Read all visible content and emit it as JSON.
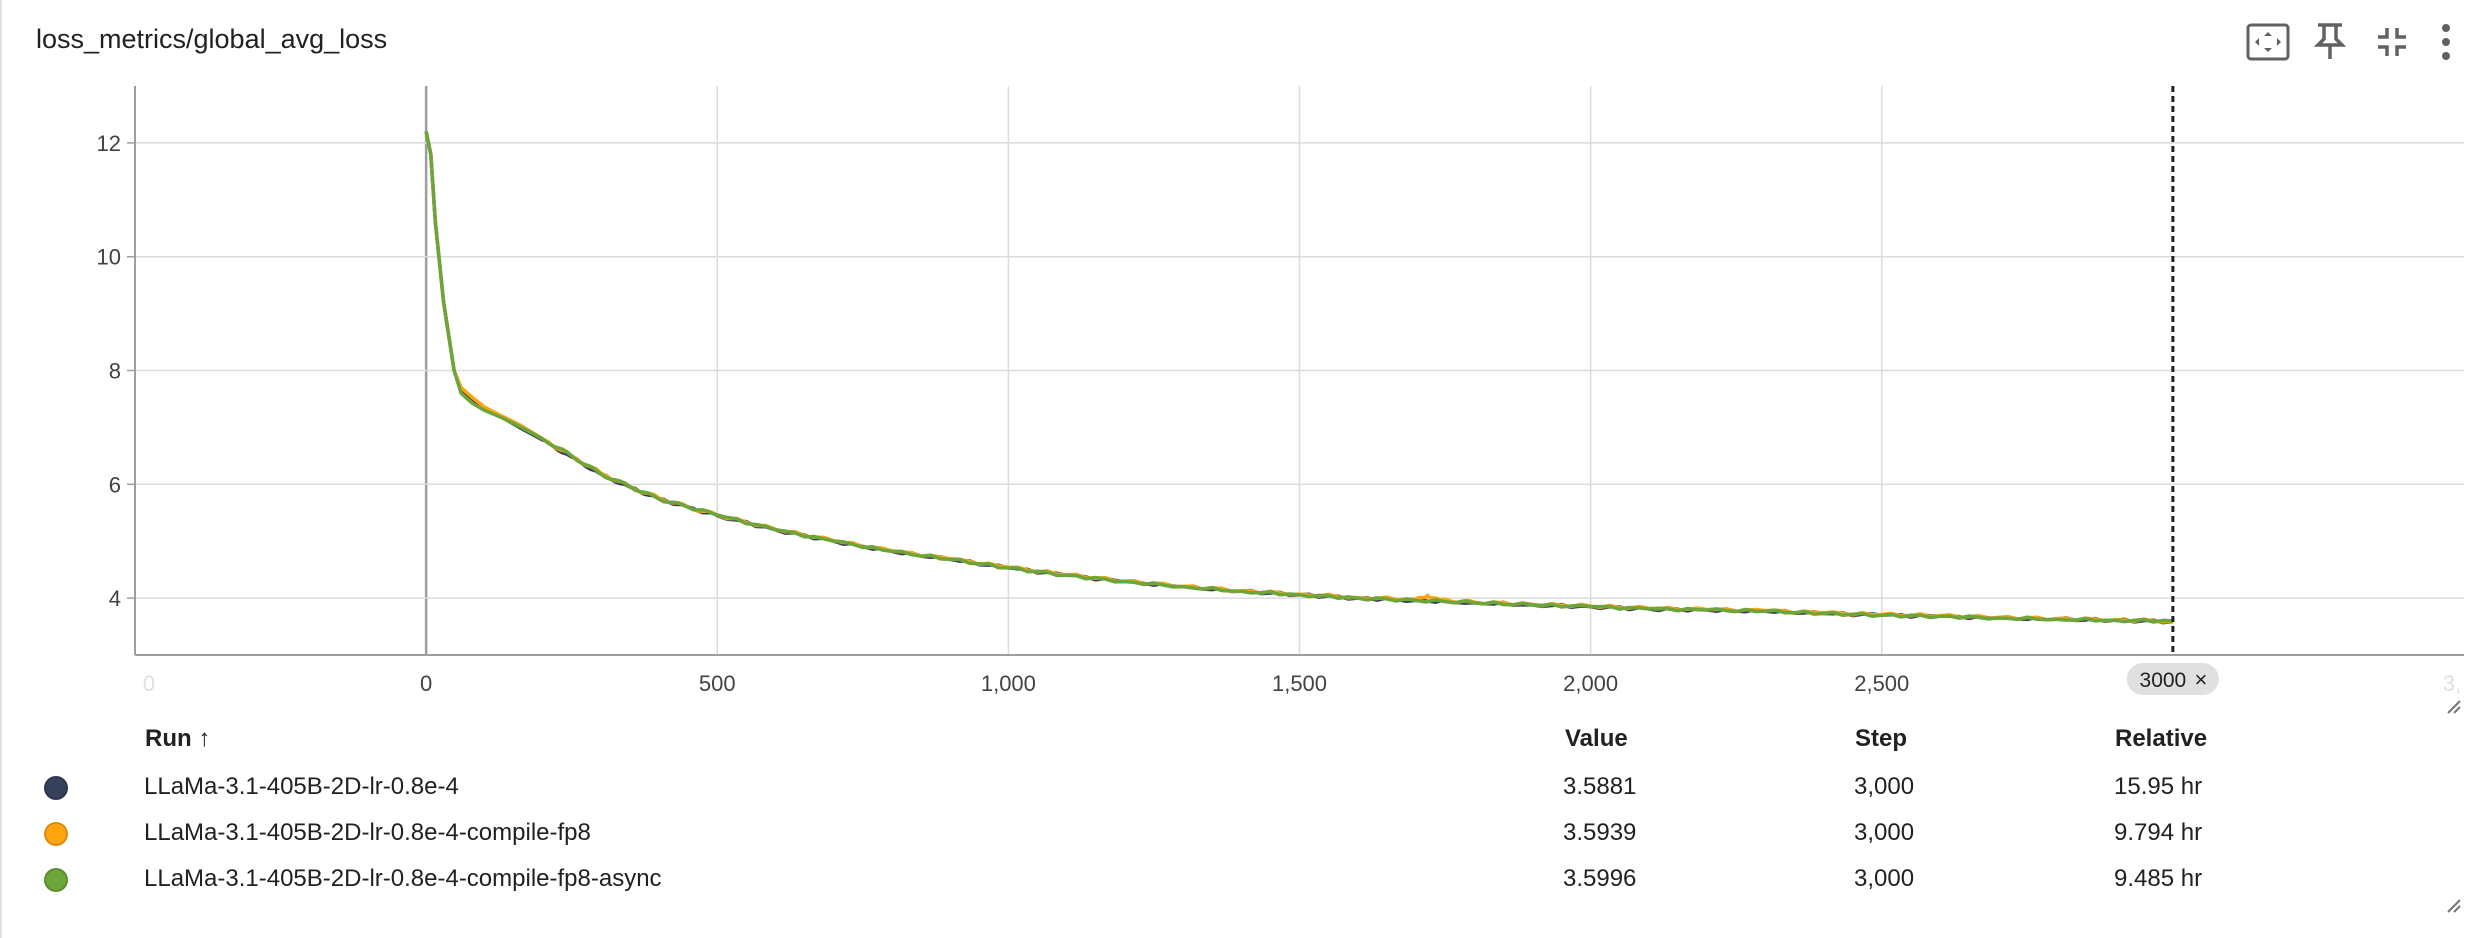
{
  "card": {
    "title": "loss_metrics/global_avg_loss"
  },
  "toolbar": {
    "icons": [
      "fit-domain-icon",
      "pin-icon",
      "collapse-icon",
      "more-vert-icon"
    ]
  },
  "chart_data": {
    "type": "line",
    "title": "",
    "xlabel": "",
    "ylabel": "",
    "xlim": [
      -500,
      3500
    ],
    "ylim": [
      3,
      13
    ],
    "x_ticks": [
      0,
      500,
      1000,
      1500,
      2000,
      2500
    ],
    "x_tick_labels": [
      "0",
      "500",
      "1,000",
      "1,500",
      "2,000",
      "2,500"
    ],
    "x_edge_labels": [
      "0",
      "3,"
    ],
    "y_ticks": [
      4,
      6,
      8,
      10,
      12
    ],
    "y_tick_labels": [
      "4",
      "6",
      "8",
      "10",
      "12"
    ],
    "grid": true,
    "cursor_step_label": "3000",
    "cursor_close": "×",
    "series": [
      {
        "name": "LLaMa-3.1-405B-2D-lr-0.8e-4",
        "color": "#37405a",
        "x": [
          0,
          8,
          16,
          30,
          48,
          60,
          80,
          100,
          130,
          160,
          200,
          250,
          300,
          350,
          400,
          450,
          500,
          600,
          700,
          800,
          900,
          1000,
          1100,
          1200,
          1300,
          1400,
          1500,
          1600,
          1700,
          1800,
          1900,
          2000,
          2100,
          2200,
          2300,
          2400,
          2500,
          2600,
          2700,
          2800,
          2900,
          3000
        ],
        "y": [
          12.2,
          11.8,
          10.6,
          9.2,
          8.0,
          7.65,
          7.45,
          7.33,
          7.18,
          7.0,
          6.78,
          6.48,
          6.18,
          5.95,
          5.75,
          5.6,
          5.45,
          5.2,
          5.0,
          4.82,
          4.68,
          4.53,
          4.4,
          4.29,
          4.2,
          4.12,
          4.06,
          4.0,
          3.96,
          3.92,
          3.88,
          3.85,
          3.81,
          3.79,
          3.77,
          3.73,
          3.7,
          3.68,
          3.65,
          3.63,
          3.61,
          3.5881
        ]
      },
      {
        "name": "LLaMa-3.1-405B-2D-lr-0.8e-4-compile-fp8",
        "color": "#ffa40e",
        "x": [
          0,
          8,
          16,
          30,
          48,
          60,
          80,
          100,
          130,
          160,
          200,
          250,
          300,
          350,
          400,
          450,
          500,
          600,
          700,
          800,
          900,
          1000,
          1100,
          1200,
          1300,
          1400,
          1500,
          1600,
          1700,
          1720,
          1740,
          1800,
          1900,
          2000,
          2100,
          2200,
          2300,
          2400,
          2500,
          2600,
          2700,
          2800,
          2900,
          3000
        ],
        "y": [
          12.2,
          11.8,
          10.6,
          9.2,
          8.0,
          7.7,
          7.52,
          7.36,
          7.2,
          7.05,
          6.8,
          6.5,
          6.2,
          5.96,
          5.76,
          5.6,
          5.46,
          5.21,
          5.01,
          4.83,
          4.69,
          4.54,
          4.41,
          4.3,
          4.21,
          4.13,
          4.07,
          4.01,
          3.98,
          4.05,
          3.97,
          3.93,
          3.89,
          3.86,
          3.82,
          3.8,
          3.78,
          3.74,
          3.71,
          3.69,
          3.66,
          3.64,
          3.62,
          3.5939
        ]
      },
      {
        "name": "LLaMa-3.1-405B-2D-lr-0.8e-4-compile-fp8-async",
        "color": "#6ca63a",
        "x": [
          0,
          8,
          16,
          30,
          48,
          60,
          80,
          100,
          130,
          160,
          200,
          250,
          300,
          350,
          400,
          450,
          500,
          600,
          700,
          800,
          900,
          1000,
          1100,
          1200,
          1300,
          1400,
          1500,
          1600,
          1700,
          1800,
          1900,
          2000,
          2100,
          2200,
          2300,
          2400,
          2500,
          2600,
          2700,
          2800,
          2900,
          3000
        ],
        "y": [
          12.2,
          11.8,
          10.6,
          9.2,
          8.0,
          7.6,
          7.42,
          7.3,
          7.17,
          7.02,
          6.8,
          6.5,
          6.18,
          5.96,
          5.74,
          5.6,
          5.46,
          5.2,
          5.0,
          4.82,
          4.68,
          4.53,
          4.4,
          4.29,
          4.2,
          4.12,
          4.06,
          4.0,
          3.96,
          3.92,
          3.88,
          3.85,
          3.81,
          3.79,
          3.77,
          3.73,
          3.7,
          3.68,
          3.65,
          3.63,
          3.61,
          3.5996
        ]
      }
    ]
  },
  "table": {
    "headers": {
      "run": "Run ↑",
      "value": "Value",
      "step": "Step",
      "relative": "Relative"
    },
    "rows": [
      {
        "name": "LLaMa-3.1-405B-2D-lr-0.8e-4",
        "color": "#37405a",
        "value": "3.5881",
        "step": "3,000",
        "relative": "15.95 hr"
      },
      {
        "name": "LLaMa-3.1-405B-2D-lr-0.8e-4-compile-fp8",
        "color": "#ffa40e",
        "value": "3.5939",
        "step": "3,000",
        "relative": "9.794 hr"
      },
      {
        "name": "LLaMa-3.1-405B-2D-lr-0.8e-4-compile-fp8-async",
        "color": "#6ca63a",
        "value": "3.5996",
        "step": "3,000",
        "relative": "9.485 hr"
      }
    ]
  }
}
